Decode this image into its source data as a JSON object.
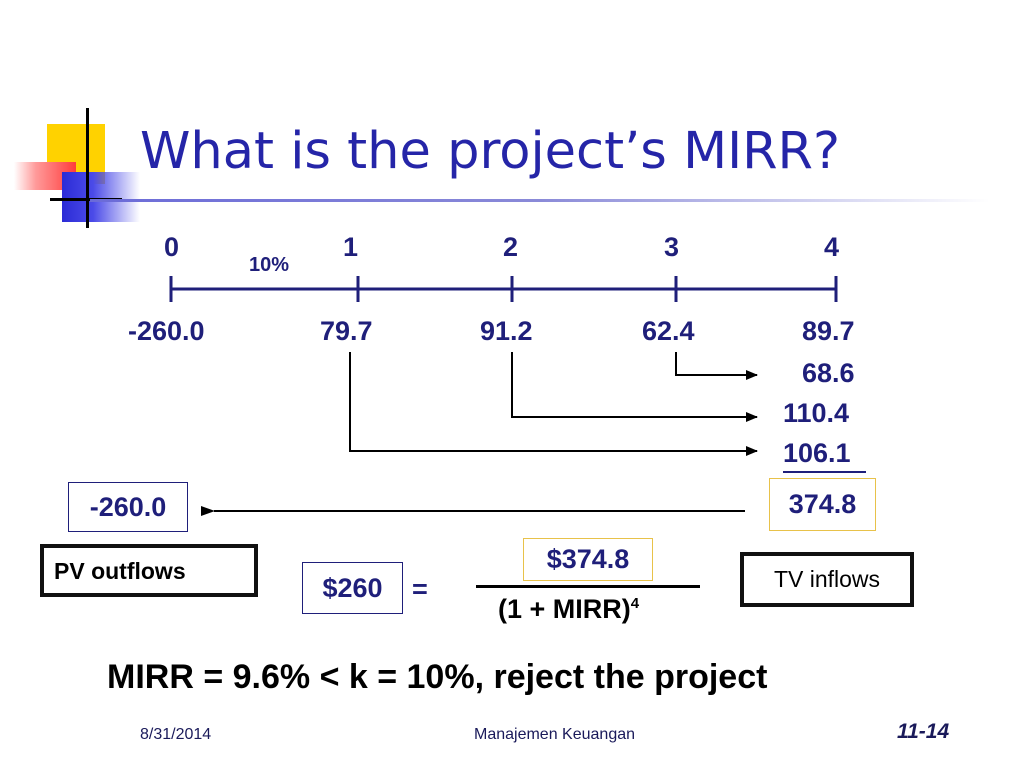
{
  "slide": {
    "title": "What is the project’s MIRR?"
  },
  "timeline": {
    "periods": [
      "0",
      "1",
      "2",
      "3",
      "4"
    ],
    "rate": "10%",
    "cash_flows": [
      "-260.0",
      "79.7",
      "91.2",
      "62.4",
      "89.7"
    ],
    "compounded": [
      "68.6",
      "110.4",
      "106.1"
    ]
  },
  "result": {
    "pv_value": "-260.0",
    "tv_value": "374.8",
    "pv_label": "PV outflows",
    "tv_label": "TV inflows"
  },
  "equation": {
    "lhs": "$260",
    "equals": "=",
    "numerator": "$374.8",
    "denominator": "(1 + MIRR)",
    "exponent": "4"
  },
  "conclusion": "MIRR = 9.6% < k = 10%, reject the project",
  "footer": {
    "date": "8/31/2014",
    "center": "Manajemen Keuangan",
    "page": "11-14"
  },
  "colors": {
    "title": "#2525a8",
    "text_navy": "#1f1f7a",
    "highlight_border": "#e8c24a",
    "deco_yellow": "#ffd200",
    "deco_red": "#ff3b3b",
    "deco_blue": "#2b2bd6"
  }
}
